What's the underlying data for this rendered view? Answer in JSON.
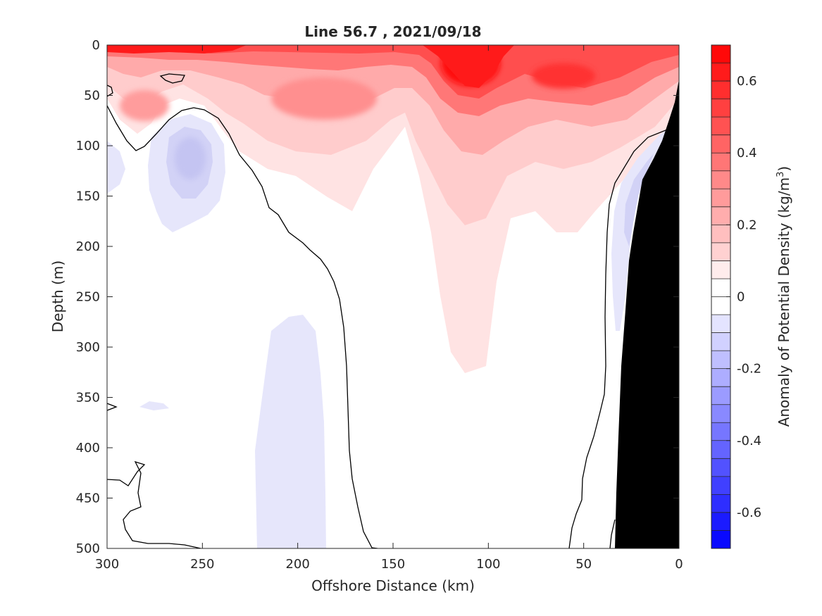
{
  "chart_data": {
    "type": "heatmap",
    "subtype": "filled-contour-section",
    "title": "Line 56.7 , 2021/09/18",
    "xlabel": "Offshore Distance (km)",
    "ylabel": "Depth (m)",
    "xlim": [
      300,
      0
    ],
    "ylim": [
      500,
      0
    ],
    "x_direction": "reversed",
    "y_direction": "reversed",
    "xticks": [
      "300",
      "250",
      "200",
      "150",
      "100",
      "50",
      "0"
    ],
    "yticks": [
      "0",
      "50",
      "100",
      "150",
      "200",
      "250",
      "300",
      "350",
      "400",
      "450",
      "500"
    ],
    "colorbar": {
      "label": "Anomaly of Potential Density (kg/m",
      "label_superscript": "3",
      "label_close": ")",
      "range": [
        -0.7,
        0.7
      ],
      "levels": 28,
      "ticks": [
        "0.6",
        "0.4",
        "0.2",
        "0",
        "-0.2",
        "-0.4",
        "-0.6"
      ],
      "colormap": "blue-white-red",
      "colors": {
        "negative": "#0000ff",
        "zero": "#ffffff",
        "positive": "#ff0000"
      }
    },
    "contour_line": {
      "value": 0,
      "color": "#000000"
    },
    "land_color": "#000000",
    "features": [
      {
        "name": "surface-positive-band",
        "distance_km": [
          0,
          300
        ],
        "depth_m": [
          0,
          60
        ],
        "max_anomaly": 0.7
      },
      {
        "name": "positive-core-near-110km",
        "center_km": 110,
        "center_depth_m": 25,
        "max_anomaly": 0.7
      },
      {
        "name": "positive-core-near-60km",
        "center_km": 60,
        "center_depth_m": 35,
        "max_anomaly": 0.55
      },
      {
        "name": "positive-tongue",
        "distance_km": [
          95,
          125
        ],
        "depth_m": [
          0,
          325
        ],
        "min_anomaly": 0.05
      },
      {
        "name": "negative-eddy-near-255km",
        "center_km": 255,
        "center_depth_m": 110,
        "min_anomaly": -0.15
      },
      {
        "name": "negative-patch-deep",
        "distance_km": [
          185,
          220
        ],
        "depth_m": [
          270,
          500
        ],
        "min_anomaly": -0.05
      },
      {
        "name": "nearshore-negative",
        "distance_km": [
          5,
          35
        ],
        "depth_m": [
          90,
          300
        ],
        "min_anomaly": -0.1
      }
    ]
  }
}
